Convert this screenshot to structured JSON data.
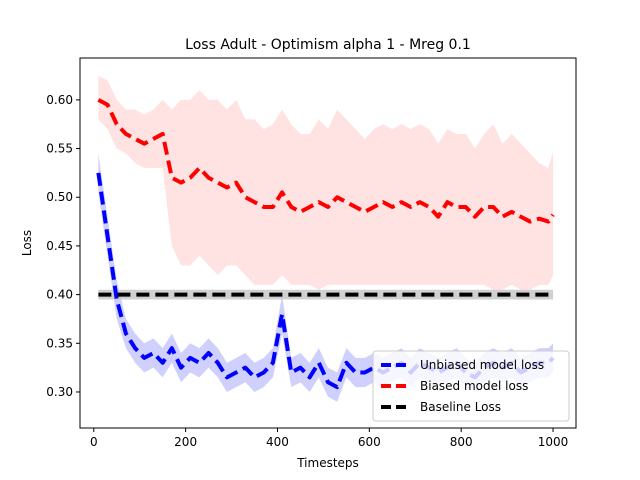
{
  "chart_data": {
    "type": "line",
    "title": "Loss Adult - Optimism alpha 1 - Mreg 0.1",
    "xlabel": "Timesteps",
    "ylabel": "Loss",
    "xlim": [
      -30,
      1050
    ],
    "ylim": [
      0.263,
      0.643
    ],
    "xticks": [
      0,
      200,
      400,
      600,
      800,
      1000
    ],
    "yticks": [
      0.3,
      0.35,
      0.4,
      0.45,
      0.5,
      0.55,
      0.6
    ],
    "xtick_labels": [
      "0",
      "200",
      "400",
      "600",
      "800",
      "1000"
    ],
    "ytick_labels": [
      "0.30",
      "0.35",
      "0.40",
      "0.45",
      "0.50",
      "0.55",
      "0.60"
    ],
    "grid": false,
    "legend_position": "bottom-right",
    "x": [
      10,
      30,
      50,
      70,
      90,
      110,
      130,
      150,
      170,
      190,
      210,
      230,
      250,
      270,
      290,
      310,
      330,
      350,
      370,
      390,
      410,
      430,
      450,
      470,
      490,
      510,
      530,
      550,
      570,
      590,
      610,
      630,
      650,
      670,
      690,
      710,
      730,
      750,
      770,
      790,
      810,
      830,
      850,
      870,
      890,
      910,
      930,
      950,
      970,
      990,
      1000
    ],
    "series": [
      {
        "name": "Unbiased model loss",
        "color": "#0000ff",
        "style": "dashed",
        "values": [
          0.525,
          0.46,
          0.395,
          0.36,
          0.345,
          0.335,
          0.34,
          0.33,
          0.345,
          0.325,
          0.335,
          0.33,
          0.34,
          0.33,
          0.315,
          0.32,
          0.325,
          0.315,
          0.32,
          0.33,
          0.38,
          0.32,
          0.325,
          0.315,
          0.33,
          0.31,
          0.305,
          0.33,
          0.32,
          0.32,
          0.325,
          0.32,
          0.325,
          0.33,
          0.32,
          0.33,
          0.325,
          0.32,
          0.325,
          0.33,
          0.32,
          0.315,
          0.325,
          0.33,
          0.325,
          0.33,
          0.32,
          0.325,
          0.33,
          0.33,
          0.335
        ],
        "band_low": [
          0.505,
          0.44,
          0.375,
          0.345,
          0.33,
          0.32,
          0.325,
          0.315,
          0.33,
          0.31,
          0.32,
          0.315,
          0.325,
          0.315,
          0.3,
          0.305,
          0.31,
          0.3,
          0.305,
          0.315,
          0.36,
          0.305,
          0.31,
          0.3,
          0.315,
          0.295,
          0.29,
          0.315,
          0.305,
          0.305,
          0.31,
          0.305,
          0.31,
          0.315,
          0.305,
          0.315,
          0.31,
          0.305,
          0.31,
          0.315,
          0.305,
          0.3,
          0.31,
          0.315,
          0.31,
          0.315,
          0.305,
          0.31,
          0.315,
          0.315,
          0.32
        ],
        "band_high": [
          0.545,
          0.48,
          0.415,
          0.375,
          0.36,
          0.35,
          0.355,
          0.345,
          0.36,
          0.34,
          0.35,
          0.345,
          0.355,
          0.345,
          0.33,
          0.335,
          0.34,
          0.33,
          0.335,
          0.345,
          0.4,
          0.335,
          0.34,
          0.33,
          0.345,
          0.325,
          0.32,
          0.345,
          0.335,
          0.335,
          0.34,
          0.335,
          0.34,
          0.345,
          0.335,
          0.345,
          0.34,
          0.335,
          0.34,
          0.345,
          0.335,
          0.33,
          0.34,
          0.345,
          0.34,
          0.345,
          0.335,
          0.34,
          0.345,
          0.345,
          0.35
        ]
      },
      {
        "name": "Biased model loss",
        "color": "#ff0000",
        "style": "dashed",
        "values": [
          0.6,
          0.595,
          0.575,
          0.565,
          0.56,
          0.555,
          0.56,
          0.565,
          0.52,
          0.515,
          0.52,
          0.53,
          0.52,
          0.515,
          0.51,
          0.515,
          0.5,
          0.495,
          0.49,
          0.49,
          0.505,
          0.49,
          0.485,
          0.49,
          0.495,
          0.49,
          0.5,
          0.495,
          0.49,
          0.485,
          0.49,
          0.495,
          0.49,
          0.495,
          0.49,
          0.495,
          0.49,
          0.48,
          0.495,
          0.49,
          0.49,
          0.48,
          0.49,
          0.49,
          0.48,
          0.485,
          0.48,
          0.475,
          0.478,
          0.475,
          0.482
        ],
        "band_low": [
          0.58,
          0.57,
          0.55,
          0.545,
          0.535,
          0.53,
          0.53,
          0.53,
          0.45,
          0.43,
          0.43,
          0.44,
          0.43,
          0.42,
          0.43,
          0.43,
          0.42,
          0.41,
          0.41,
          0.41,
          0.42,
          0.41,
          0.41,
          0.41,
          0.405,
          0.41,
          0.41,
          0.41,
          0.41,
          0.41,
          0.41,
          0.41,
          0.41,
          0.41,
          0.41,
          0.41,
          0.41,
          0.41,
          0.41,
          0.41,
          0.41,
          0.41,
          0.41,
          0.405,
          0.405,
          0.41,
          0.405,
          0.405,
          0.41,
          0.41,
          0.42
        ],
        "band_high": [
          0.625,
          0.62,
          0.6,
          0.59,
          0.59,
          0.585,
          0.59,
          0.6,
          0.59,
          0.6,
          0.6,
          0.61,
          0.6,
          0.6,
          0.59,
          0.6,
          0.58,
          0.58,
          0.57,
          0.575,
          0.59,
          0.575,
          0.565,
          0.565,
          0.58,
          0.57,
          0.59,
          0.58,
          0.57,
          0.56,
          0.57,
          0.575,
          0.57,
          0.575,
          0.57,
          0.575,
          0.57,
          0.555,
          0.57,
          0.565,
          0.565,
          0.55,
          0.565,
          0.575,
          0.555,
          0.565,
          0.555,
          0.545,
          0.535,
          0.53,
          0.547
        ]
      },
      {
        "name": "Baseline Loss",
        "color": "#000000",
        "style": "dashed",
        "values": [
          0.4,
          0.4,
          0.4,
          0.4,
          0.4,
          0.4,
          0.4,
          0.4,
          0.4,
          0.4,
          0.4,
          0.4,
          0.4,
          0.4,
          0.4,
          0.4,
          0.4,
          0.4,
          0.4,
          0.4,
          0.4,
          0.4,
          0.4,
          0.4,
          0.4,
          0.4,
          0.4,
          0.4,
          0.4,
          0.4,
          0.4,
          0.4,
          0.4,
          0.4,
          0.4,
          0.4,
          0.4,
          0.4,
          0.4,
          0.4,
          0.4,
          0.4,
          0.4,
          0.4,
          0.4,
          0.4,
          0.4,
          0.4,
          0.4,
          0.4,
          0.4
        ],
        "band_low": [
          0.395,
          0.395,
          0.395,
          0.395,
          0.395,
          0.395,
          0.395,
          0.395,
          0.395,
          0.395,
          0.395,
          0.395,
          0.395,
          0.395,
          0.395,
          0.395,
          0.395,
          0.395,
          0.395,
          0.395,
          0.395,
          0.395,
          0.395,
          0.395,
          0.395,
          0.395,
          0.395,
          0.395,
          0.395,
          0.395,
          0.395,
          0.395,
          0.395,
          0.395,
          0.395,
          0.395,
          0.395,
          0.395,
          0.395,
          0.395,
          0.395,
          0.395,
          0.395,
          0.395,
          0.395,
          0.395,
          0.395,
          0.395,
          0.395,
          0.395,
          0.395
        ],
        "band_high": [
          0.405,
          0.405,
          0.405,
          0.405,
          0.405,
          0.405,
          0.405,
          0.405,
          0.405,
          0.405,
          0.405,
          0.405,
          0.405,
          0.405,
          0.405,
          0.405,
          0.405,
          0.405,
          0.405,
          0.405,
          0.405,
          0.405,
          0.405,
          0.405,
          0.405,
          0.405,
          0.405,
          0.405,
          0.405,
          0.405,
          0.405,
          0.405,
          0.405,
          0.405,
          0.405,
          0.405,
          0.405,
          0.405,
          0.405,
          0.405,
          0.405,
          0.405,
          0.405,
          0.405,
          0.405,
          0.405,
          0.405,
          0.405,
          0.405,
          0.405,
          0.405
        ]
      }
    ],
    "band_colors": {
      "Unbiased model loss": "#c8c8ff",
      "Biased model loss": "#ffdede",
      "Baseline Loss": "#c8c8c8"
    }
  }
}
